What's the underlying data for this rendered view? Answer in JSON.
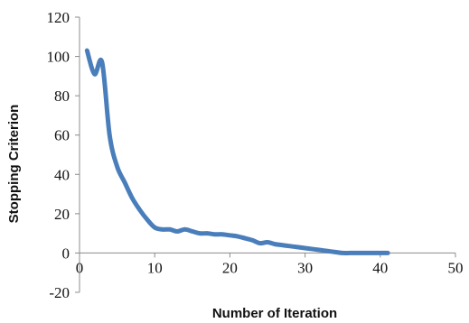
{
  "chart_data": {
    "type": "line",
    "title": "",
    "xlabel": "Number of Iteration",
    "ylabel": "Stopping Criterion",
    "xlim": [
      0,
      50
    ],
    "ylim": [
      -20,
      120
    ],
    "x_ticks": [
      0,
      10,
      20,
      30,
      40,
      50
    ],
    "y_ticks": [
      -20,
      0,
      20,
      40,
      60,
      80,
      100,
      120
    ],
    "grid": false,
    "legend": "none",
    "series": [
      {
        "color": "#4a7ebb",
        "x": [
          1,
          2,
          3,
          4,
          5,
          6,
          7,
          8,
          9,
          10,
          11,
          12,
          13,
          14,
          15,
          16,
          17,
          18,
          19,
          20,
          21,
          22,
          23,
          24,
          25,
          26,
          27,
          28,
          29,
          30,
          31,
          32,
          33,
          34,
          35,
          36,
          37,
          38,
          39,
          40,
          41
        ],
        "y": [
          103,
          91,
          97,
          60,
          44,
          36,
          28,
          22,
          17,
          13,
          12,
          12,
          11,
          12,
          11,
          10,
          10,
          9.5,
          9.5,
          9,
          8.5,
          7.5,
          6.5,
          5,
          5.5,
          4.5,
          4,
          3.5,
          3,
          2.5,
          2,
          1.5,
          1,
          0.5,
          0,
          0,
          0,
          0,
          0,
          0,
          0
        ]
      }
    ]
  }
}
